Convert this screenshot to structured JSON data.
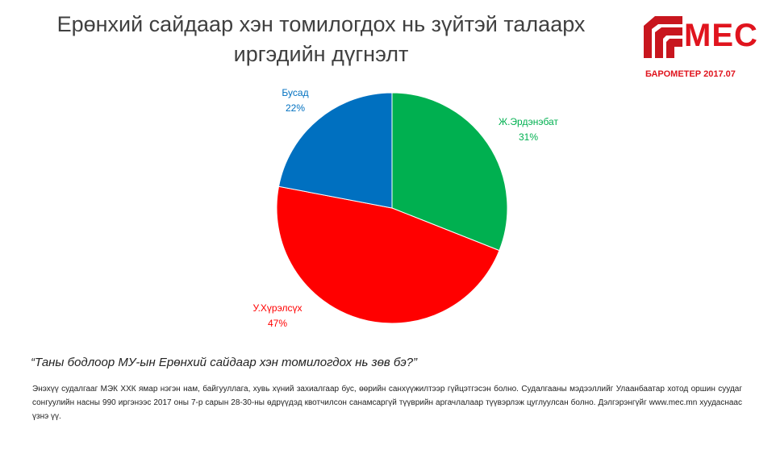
{
  "chart_data": {
    "type": "pie",
    "title": "Ерөнхий сайдаар хэн томилогдох нь зүйтэй талаарх иргэдийн дүгнэлт",
    "categories": [
      "Ж.Эрдэнэбат",
      "У.Хүрэлсүх",
      "Бусад"
    ],
    "values": [
      31,
      47,
      22
    ],
    "value_labels": [
      "31%",
      "47%",
      "22%"
    ],
    "colors": [
      "#00b050",
      "#ff0000",
      "#0070c0"
    ]
  },
  "logo": {
    "name": "МЕС",
    "caption": "БАРОМЕТЕР 2017.07"
  },
  "question": "“Таны бодлоор МУ-ын Ерөнхий сайдаар хэн томилогдох нь зөв бэ?”",
  "note": "Энэхүү судалгааг МЭК ХХК ямар нэгэн нам, байгууллага, хувь хүний захиалгаар бус, өөрийн санхүүжилтээр гүйцэтгэсэн болно. Судалгааны мэдээллийг Улаанбаатар хотод оршин суудаг сонгуулийн насны 990 иргэнээс 2017 оны 7-р сарын 28-30-ны өдрүүдэд квотчилсон санамсаргүй түүврийн аргачлалаар түүвэрлэж цуглуулсан болно. Дэлгэрэнгүйг www.mec.mn хуудаснаас үзнэ үү."
}
